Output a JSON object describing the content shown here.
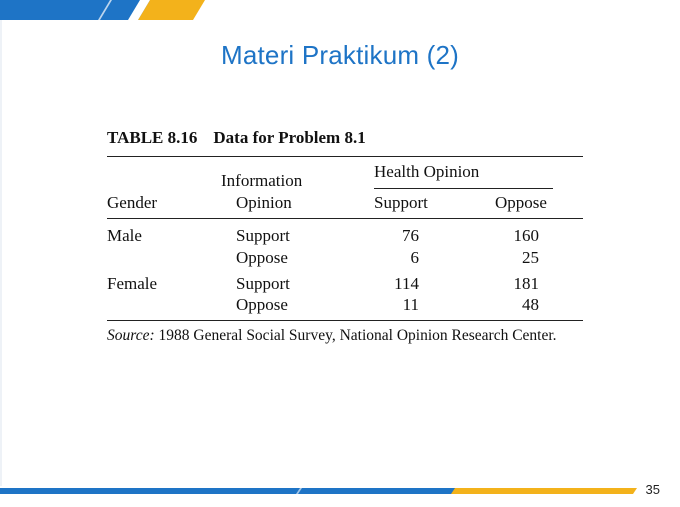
{
  "slide": {
    "title": "Materi Praktikum (2)",
    "page_number": "35"
  },
  "table": {
    "caption_number": "TABLE 8.16",
    "caption_text": "Data for Problem 8.1",
    "headers": {
      "gender": "Gender",
      "information_line1": "Information",
      "information_line2": "Opinion",
      "health_opinion": "Health Opinion",
      "support": "Support",
      "oppose": "Oppose"
    },
    "rows": [
      {
        "gender": "Male",
        "info": "Support",
        "support": "76",
        "oppose": "160"
      },
      {
        "gender": "",
        "info": "Oppose",
        "support": "6",
        "oppose": "25"
      },
      {
        "gender": "Female",
        "info": "Support",
        "support": "114",
        "oppose": "181"
      },
      {
        "gender": "",
        "info": "Oppose",
        "support": "11",
        "oppose": "48"
      }
    ],
    "source_label": "Source:",
    "source_text": "1988 General Social Survey, National Opinion Research Center."
  },
  "colors": {
    "accent_blue": "#1e74c6",
    "accent_gold": "#f3b21b"
  }
}
